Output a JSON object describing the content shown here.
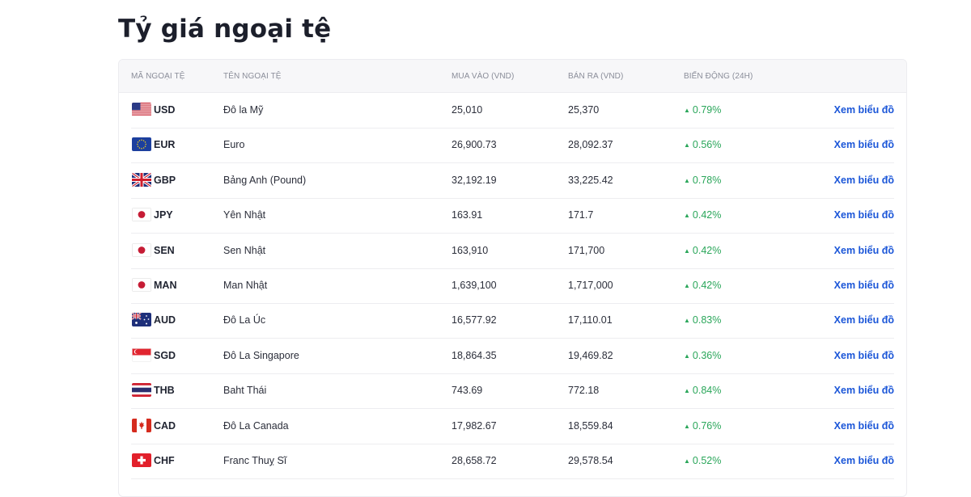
{
  "page": {
    "title": "Tỷ giá ngoại tệ"
  },
  "table": {
    "headers": {
      "code": "MÃ NGOẠI TỆ",
      "name": "TÊN NGOẠI TỆ",
      "buy": "MUA VÀO (VND)",
      "sell": "BÁN RA (VND)",
      "change": "BIẾN ĐỘNG (24H)"
    },
    "change_arrow": "▲",
    "chart_link_label": "Xem biểu đồ",
    "colors": {
      "positive": "#2aa65a",
      "link": "#1b56d8"
    },
    "rows": [
      {
        "flag": "us-flag",
        "code": "USD",
        "name": "Đô la Mỹ",
        "buy": "25,010",
        "sell": "25,370",
        "change": "0.79%"
      },
      {
        "flag": "eu-flag",
        "code": "EUR",
        "name": "Euro",
        "buy": "26,900.73",
        "sell": "28,092.37",
        "change": "0.56%"
      },
      {
        "flag": "gb-flag",
        "code": "GBP",
        "name": "Bảng Anh (Pound)",
        "buy": "32,192.19",
        "sell": "33,225.42",
        "change": "0.78%"
      },
      {
        "flag": "jp-flag",
        "code": "JPY",
        "name": "Yên Nhật",
        "buy": "163.91",
        "sell": "171.7",
        "change": "0.42%"
      },
      {
        "flag": "jp-flag",
        "code": "SEN",
        "name": "Sen Nhật",
        "buy": "163,910",
        "sell": "171,700",
        "change": "0.42%"
      },
      {
        "flag": "jp-flag",
        "code": "MAN",
        "name": "Man Nhật",
        "buy": "1,639,100",
        "sell": "1,717,000",
        "change": "0.42%"
      },
      {
        "flag": "au-flag",
        "code": "AUD",
        "name": "Đô La Úc",
        "buy": "16,577.92",
        "sell": "17,110.01",
        "change": "0.83%"
      },
      {
        "flag": "sg-flag",
        "code": "SGD",
        "name": "Đô La Singapore",
        "buy": "18,864.35",
        "sell": "19,469.82",
        "change": "0.36%"
      },
      {
        "flag": "th-flag",
        "code": "THB",
        "name": "Baht Thái",
        "buy": "743.69",
        "sell": "772.18",
        "change": "0.84%"
      },
      {
        "flag": "ca-flag",
        "code": "CAD",
        "name": "Đô La Canada",
        "buy": "17,982.67",
        "sell": "18,559.84",
        "change": "0.76%"
      },
      {
        "flag": "ch-flag",
        "code": "CHF",
        "name": "Franc Thuỵ Sĩ",
        "buy": "28,658.72",
        "sell": "29,578.54",
        "change": "0.52%"
      }
    ]
  }
}
